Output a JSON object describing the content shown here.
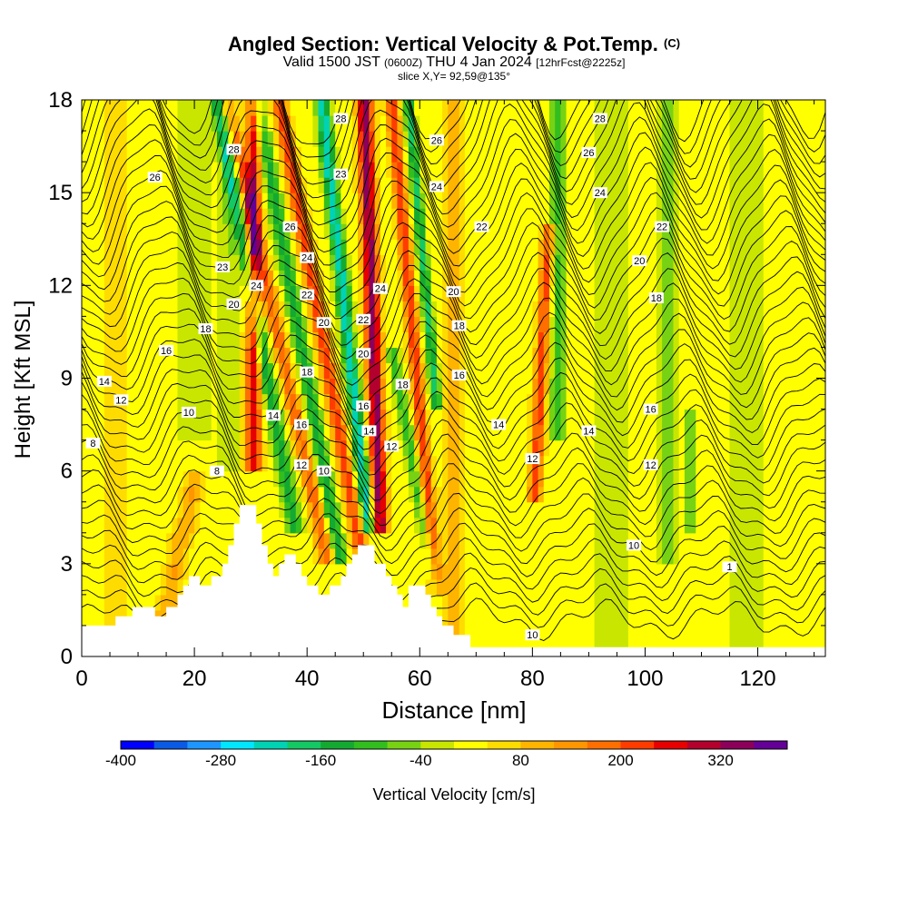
{
  "header": {
    "title": "Angled Section: Vertical Velocity & Pot.Temp.",
    "title_unit": "(C)",
    "valid_prefix": "Valid 1500 JST",
    "valid_zulu": "(0600Z)",
    "valid_date": "THU 4 Jan 2024",
    "forecast": "[12hrFcst@2225z]",
    "slice": "slice X,Y= 92,59@135°"
  },
  "chart_data": {
    "type": "heatmap",
    "xlabel": "Distance [nm]",
    "ylabel": "Height [Kft MSL]",
    "xlim": [
      0,
      132
    ],
    "ylim": [
      0,
      18
    ],
    "x_ticks": [
      0,
      20,
      40,
      60,
      80,
      100,
      120
    ],
    "y_ticks": [
      0,
      3,
      6,
      9,
      12,
      15,
      18
    ],
    "colorbar": {
      "label": "Vertical Velocity [cm/s]",
      "min": -400,
      "max": 400,
      "step": 40,
      "tick_labels": [
        "-400",
        "-280",
        "-160",
        "-40",
        "80",
        "200",
        "320"
      ],
      "colors": [
        "#0000ff",
        "#0a5ae6",
        "#1e96ff",
        "#00e6ff",
        "#00d2b4",
        "#14c864",
        "#14aa32",
        "#32be1e",
        "#78d214",
        "#c8e600",
        "#ffff00",
        "#ffdc00",
        "#ffb400",
        "#ff9600",
        "#ff6e00",
        "#ff3c00",
        "#e60000",
        "#b4002d",
        "#8c005a",
        "#640096"
      ]
    },
    "terrain_kft": [
      [
        0,
        1.0
      ],
      [
        6,
        1.0
      ],
      [
        6,
        1.3
      ],
      [
        9,
        1.3
      ],
      [
        9,
        1.6
      ],
      [
        13,
        1.6
      ],
      [
        13,
        1.3
      ],
      [
        15,
        1.3
      ],
      [
        15,
        1.6
      ],
      [
        17,
        1.6
      ],
      [
        17,
        2.0
      ],
      [
        18,
        2.0
      ],
      [
        18,
        2.3
      ],
      [
        19,
        2.3
      ],
      [
        19,
        2.6
      ],
      [
        21,
        2.6
      ],
      [
        21,
        2.3
      ],
      [
        23,
        2.3
      ],
      [
        23,
        2.6
      ],
      [
        25,
        2.6
      ],
      [
        25,
        3.0
      ],
      [
        26,
        3.0
      ],
      [
        26,
        3.6
      ],
      [
        27,
        3.6
      ],
      [
        27,
        4.3
      ],
      [
        28,
        4.3
      ],
      [
        28,
        4.9
      ],
      [
        31,
        4.9
      ],
      [
        31,
        4.3
      ],
      [
        32,
        4.3
      ],
      [
        32,
        3.6
      ],
      [
        33,
        3.6
      ],
      [
        33,
        3.0
      ],
      [
        34,
        3.0
      ],
      [
        34,
        2.6
      ],
      [
        35,
        2.6
      ],
      [
        35,
        3.0
      ],
      [
        36,
        3.0
      ],
      [
        36,
        3.3
      ],
      [
        38,
        3.3
      ],
      [
        38,
        3.0
      ],
      [
        39,
        3.0
      ],
      [
        39,
        2.6
      ],
      [
        40,
        2.6
      ],
      [
        40,
        2.3
      ],
      [
        42,
        2.3
      ],
      [
        42,
        2.0
      ],
      [
        44,
        2.0
      ],
      [
        44,
        2.3
      ],
      [
        46,
        2.3
      ],
      [
        46,
        2.6
      ],
      [
        47,
        2.6
      ],
      [
        47,
        3.0
      ],
      [
        48,
        3.0
      ],
      [
        48,
        3.3
      ],
      [
        49,
        3.3
      ],
      [
        49,
        3.6
      ],
      [
        52,
        3.6
      ],
      [
        52,
        3.0
      ],
      [
        54,
        3.0
      ],
      [
        54,
        2.6
      ],
      [
        55,
        2.6
      ],
      [
        55,
        2.3
      ],
      [
        56,
        2.3
      ],
      [
        56,
        2.0
      ],
      [
        57,
        2.0
      ],
      [
        57,
        1.6
      ],
      [
        58,
        1.6
      ],
      [
        58,
        2.3
      ],
      [
        61,
        2.3
      ],
      [
        61,
        2.0
      ],
      [
        62,
        2.0
      ],
      [
        62,
        1.6
      ],
      [
        63,
        1.6
      ],
      [
        63,
        1.3
      ],
      [
        64,
        1.3
      ],
      [
        64,
        1.0
      ],
      [
        66,
        1.0
      ],
      [
        66,
        0.7
      ],
      [
        69,
        0.7
      ],
      [
        69,
        0.3
      ],
      [
        132,
        0.3
      ],
      [
        132,
        0
      ]
    ],
    "contour_labels": [
      {
        "text": "28",
        "x": 27,
        "y": 16.4
      },
      {
        "text": "26",
        "x": 13,
        "y": 15.5
      },
      {
        "text": "23",
        "x": 25,
        "y": 12.6
      },
      {
        "text": "24",
        "x": 31,
        "y": 12.0
      },
      {
        "text": "20",
        "x": 27,
        "y": 11.4
      },
      {
        "text": "18",
        "x": 22,
        "y": 10.6
      },
      {
        "text": "16",
        "x": 15,
        "y": 9.9
      },
      {
        "text": "14",
        "x": 4,
        "y": 8.9
      },
      {
        "text": "12",
        "x": 7,
        "y": 8.3
      },
      {
        "text": "10",
        "x": 19,
        "y": 7.9
      },
      {
        "text": "8",
        "x": 2,
        "y": 6.9
      },
      {
        "text": "8",
        "x": 24,
        "y": 6.0
      },
      {
        "text": "28",
        "x": 46,
        "y": 17.4
      },
      {
        "text": "23",
        "x": 46,
        "y": 15.6
      },
      {
        "text": "26",
        "x": 37,
        "y": 13.9
      },
      {
        "text": "24",
        "x": 40,
        "y": 12.9
      },
      {
        "text": "22",
        "x": 40,
        "y": 11.7
      },
      {
        "text": "20",
        "x": 43,
        "y": 10.8
      },
      {
        "text": "18",
        "x": 40,
        "y": 9.2
      },
      {
        "text": "14",
        "x": 34,
        "y": 7.8
      },
      {
        "text": "16",
        "x": 39,
        "y": 7.5
      },
      {
        "text": "12",
        "x": 39,
        "y": 6.2
      },
      {
        "text": "10",
        "x": 43,
        "y": 6.0
      },
      {
        "text": "22",
        "x": 50,
        "y": 10.9
      },
      {
        "text": "20",
        "x": 50,
        "y": 9.8
      },
      {
        "text": "16",
        "x": 50,
        "y": 8.1
      },
      {
        "text": "14",
        "x": 51,
        "y": 7.3
      },
      {
        "text": "18",
        "x": 57,
        "y": 8.8
      },
      {
        "text": "12",
        "x": 55,
        "y": 6.8
      },
      {
        "text": "24",
        "x": 53,
        "y": 11.9
      },
      {
        "text": "26",
        "x": 63,
        "y": 16.7
      },
      {
        "text": "24",
        "x": 63,
        "y": 15.2
      },
      {
        "text": "22",
        "x": 71,
        "y": 13.9
      },
      {
        "text": "20",
        "x": 66,
        "y": 11.8
      },
      {
        "text": "18",
        "x": 67,
        "y": 10.7
      },
      {
        "text": "16",
        "x": 67,
        "y": 9.1
      },
      {
        "text": "14",
        "x": 74,
        "y": 7.5
      },
      {
        "text": "12",
        "x": 80,
        "y": 6.4
      },
      {
        "text": "10",
        "x": 80,
        "y": 0.7
      },
      {
        "text": "28",
        "x": 92,
        "y": 17.4
      },
      {
        "text": "26",
        "x": 90,
        "y": 16.3
      },
      {
        "text": "24",
        "x": 92,
        "y": 15.0
      },
      {
        "text": "22",
        "x": 103,
        "y": 13.9
      },
      {
        "text": "20",
        "x": 99,
        "y": 12.8
      },
      {
        "text": "18",
        "x": 102,
        "y": 11.6
      },
      {
        "text": "16",
        "x": 101,
        "y": 8.0
      },
      {
        "text": "14",
        "x": 90,
        "y": 7.3
      },
      {
        "text": "12",
        "x": 101,
        "y": 6.2
      },
      {
        "text": "10",
        "x": 98,
        "y": 3.6
      },
      {
        "text": "1",
        "x": 115,
        "y": 2.9
      }
    ]
  }
}
